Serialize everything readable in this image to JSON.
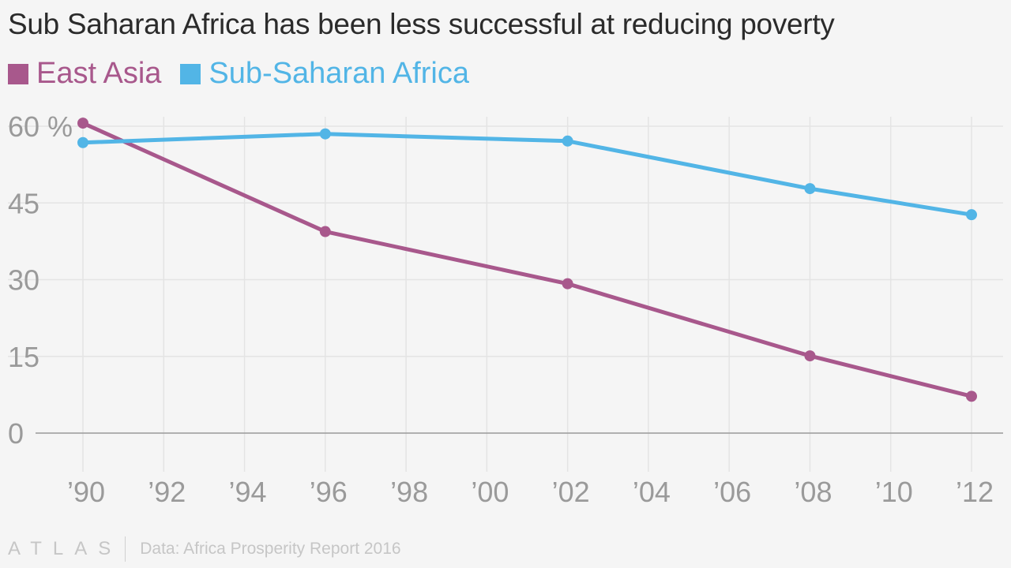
{
  "chart_data": {
    "type": "line",
    "title": "Sub Saharan Africa has been less successful at reducing poverty",
    "x": [
      1990,
      1996,
      2002,
      2008,
      2012
    ],
    "series": [
      {
        "name": "East Asia",
        "color": "#a8588c",
        "values": [
          60.6,
          39.4,
          29.2,
          15.1,
          7.2
        ]
      },
      {
        "name": "Sub-Saharan Africa",
        "color": "#52b5e6",
        "values": [
          56.8,
          58.5,
          57.1,
          47.8,
          42.7
        ]
      }
    ],
    "xlim": [
      1990,
      2012
    ],
    "ylim": [
      0,
      60
    ],
    "yticks": [
      {
        "value": 0,
        "label": "0"
      },
      {
        "value": 15,
        "label": "15"
      },
      {
        "value": 30,
        "label": "30"
      },
      {
        "value": 45,
        "label": "45"
      },
      {
        "value": 60,
        "label": "60 %"
      }
    ],
    "xticks": [
      {
        "value": 1990,
        "label": "’90"
      },
      {
        "value": 1992,
        "label": "’92"
      },
      {
        "value": 1994,
        "label": "’94"
      },
      {
        "value": 1996,
        "label": "’96"
      },
      {
        "value": 1998,
        "label": "’98"
      },
      {
        "value": 2000,
        "label": "’00"
      },
      {
        "value": 2002,
        "label": "’02"
      },
      {
        "value": 2004,
        "label": "’04"
      },
      {
        "value": 2006,
        "label": "’06"
      },
      {
        "value": 2008,
        "label": "’08"
      },
      {
        "value": 2010,
        "label": "’10"
      },
      {
        "value": 2012,
        "label": "’12"
      }
    ],
    "grid": true,
    "legend": "top-left"
  },
  "footer": {
    "logo": "ATLAS",
    "source": "Data: Africa Prosperity Report 2016"
  },
  "colors": {
    "grid": "#e4e4e4",
    "axis": "#9a9a9a",
    "tick_label": "#9a9a9a"
  }
}
